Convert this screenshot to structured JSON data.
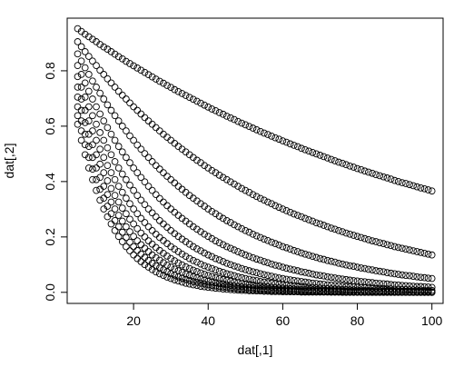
{
  "chart_data": {
    "type": "scatter",
    "title": "",
    "xlabel": "dat[,1]",
    "ylabel": "dat[,2]",
    "xlim": [
      2.2,
      103
    ],
    "ylim": [
      -0.04,
      0.99
    ],
    "xticks": [
      20,
      40,
      60,
      80,
      100
    ],
    "xtick_labels": [
      "20",
      "40",
      "60",
      "80",
      "100"
    ],
    "yticks": [
      0.0,
      0.2,
      0.4,
      0.6,
      0.8
    ],
    "ytick_labels": [
      "0.0",
      "0.2",
      "0.4",
      "0.6",
      "0.8"
    ],
    "grid": false,
    "legend": "none",
    "marker": "open-circle",
    "colors": {
      "points": "#000000",
      "axes": "#000000",
      "background": "#ffffff"
    },
    "x": [
      5,
      6,
      7,
      8,
      9,
      10,
      11,
      12,
      13,
      14,
      15,
      16,
      17,
      18,
      19,
      20,
      21,
      22,
      23,
      24,
      25,
      26,
      27,
      28,
      29,
      30,
      31,
      32,
      33,
      34,
      35,
      36,
      37,
      38,
      39,
      40,
      41,
      42,
      43,
      44,
      45,
      46,
      47,
      48,
      49,
      50,
      51,
      52,
      53,
      54,
      55,
      56,
      57,
      58,
      59,
      60,
      61,
      62,
      63,
      64,
      65,
      66,
      67,
      68,
      69,
      70,
      71,
      72,
      73,
      74,
      75,
      76,
      77,
      78,
      79,
      80,
      81,
      82,
      83,
      84,
      85,
      86,
      87,
      88,
      89,
      90,
      91,
      92,
      93,
      94,
      95,
      96,
      97,
      98,
      99,
      100
    ],
    "series": [
      {
        "values": [
          0.952,
          0.942,
          0.932,
          0.923,
          0.914,
          0.905,
          0.895,
          0.886,
          0.878,
          0.869,
          0.86,
          0.851,
          0.843,
          0.834,
          0.826,
          0.818,
          0.81,
          0.802,
          0.794,
          0.786,
          0.778,
          0.77,
          0.762,
          0.755,
          0.747,
          0.74,
          0.732,
          0.725,
          0.718,
          0.711,
          0.704,
          0.697,
          0.69,
          0.683,
          0.676,
          0.669,
          0.662,
          0.656,
          0.649,
          0.643,
          0.636,
          0.63,
          0.624,
          0.617,
          0.611,
          0.605,
          0.599,
          0.593,
          0.587,
          0.581,
          0.575,
          0.57,
          0.564,
          0.558,
          0.553,
          0.547,
          0.542,
          0.536,
          0.531,
          0.526,
          0.52,
          0.515,
          0.51,
          0.505,
          0.5,
          0.495,
          0.49,
          0.485,
          0.48,
          0.475,
          0.47,
          0.466,
          0.461,
          0.456,
          0.452,
          0.447,
          0.443,
          0.438,
          0.434,
          0.43,
          0.425,
          0.421,
          0.417,
          0.413,
          0.409,
          0.404,
          0.4,
          0.396,
          0.393,
          0.389,
          0.385,
          0.381,
          0.377,
          0.374,
          0.37,
          0.366
        ]
      },
      {
        "values": [
          0.905,
          0.887,
          0.869,
          0.852,
          0.835,
          0.819,
          0.802,
          0.787,
          0.771,
          0.756,
          0.741,
          0.726,
          0.712,
          0.698,
          0.684,
          0.67,
          0.657,
          0.644,
          0.631,
          0.619,
          0.607,
          0.595,
          0.583,
          0.571,
          0.56,
          0.549,
          0.538,
          0.527,
          0.517,
          0.507,
          0.497,
          0.487,
          0.477,
          0.468,
          0.458,
          0.449,
          0.44,
          0.432,
          0.423,
          0.415,
          0.407,
          0.399,
          0.391,
          0.383,
          0.375,
          0.368,
          0.361,
          0.353,
          0.346,
          0.339,
          0.333,
          0.326,
          0.32,
          0.313,
          0.307,
          0.301,
          0.295,
          0.289,
          0.283,
          0.278,
          0.273,
          0.267,
          0.262,
          0.257,
          0.251,
          0.247,
          0.242,
          0.237,
          0.232,
          0.228,
          0.223,
          0.219,
          0.214,
          0.21,
          0.206,
          0.202,
          0.198,
          0.194,
          0.19,
          0.186,
          0.183,
          0.179,
          0.176,
          0.172,
          0.169,
          0.165,
          0.162,
          0.159,
          0.156,
          0.153,
          0.15,
          0.147,
          0.144,
          0.141,
          0.138,
          0.135
        ]
      },
      {
        "values": [
          0.861,
          0.835,
          0.811,
          0.787,
          0.763,
          0.741,
          0.719,
          0.698,
          0.677,
          0.657,
          0.638,
          0.619,
          0.6,
          0.583,
          0.565,
          0.549,
          0.532,
          0.517,
          0.501,
          0.487,
          0.472,
          0.458,
          0.445,
          0.432,
          0.419,
          0.407,
          0.395,
          0.383,
          0.372,
          0.361,
          0.35,
          0.34,
          0.33,
          0.32,
          0.311,
          0.301,
          0.292,
          0.284,
          0.275,
          0.267,
          0.259,
          0.252,
          0.244,
          0.237,
          0.23,
          0.223,
          0.217,
          0.21,
          0.204,
          0.198,
          0.192,
          0.187,
          0.181,
          0.176,
          0.171,
          0.165,
          0.161,
          0.156,
          0.151,
          0.147,
          0.142,
          0.138,
          0.134,
          0.13,
          0.126,
          0.122,
          0.119,
          0.115,
          0.112,
          0.109,
          0.105,
          0.102,
          0.099,
          0.096,
          0.094,
          0.091,
          0.088,
          0.086,
          0.083,
          0.081,
          0.078,
          0.076,
          0.074,
          0.071,
          0.069,
          0.067,
          0.065,
          0.063,
          0.061,
          0.06,
          0.058,
          0.056,
          0.054,
          0.053,
          0.051,
          0.05
        ]
      },
      {
        "values": [
          0.819,
          0.787,
          0.756,
          0.726,
          0.698,
          0.67,
          0.644,
          0.619,
          0.595,
          0.571,
          0.549,
          0.527,
          0.507,
          0.487,
          0.468,
          0.449,
          0.432,
          0.415,
          0.399,
          0.383,
          0.368,
          0.353,
          0.339,
          0.326,
          0.313,
          0.301,
          0.289,
          0.278,
          0.267,
          0.257,
          0.247,
          0.237,
          0.228,
          0.219,
          0.21,
          0.202,
          0.194,
          0.186,
          0.179,
          0.172,
          0.165,
          0.159,
          0.153,
          0.147,
          0.141,
          0.135,
          0.13,
          0.125,
          0.12,
          0.116,
          0.111,
          0.107,
          0.102,
          0.098,
          0.095,
          0.091,
          0.087,
          0.084,
          0.081,
          0.078,
          0.074,
          0.072,
          0.069,
          0.066,
          0.063,
          0.061,
          0.059,
          0.056,
          0.054,
          0.052,
          0.05,
          0.048,
          0.046,
          0.044,
          0.042,
          0.041,
          0.039,
          0.038,
          0.036,
          0.035,
          0.033,
          0.032,
          0.031,
          0.03,
          0.028,
          0.027,
          0.026,
          0.025,
          0.024,
          0.023,
          0.022,
          0.021,
          0.021,
          0.02,
          0.019,
          0.018
        ]
      },
      {
        "values": [
          0.779,
          0.741,
          0.705,
          0.67,
          0.638,
          0.607,
          0.577,
          0.549,
          0.522,
          0.497,
          0.472,
          0.449,
          0.427,
          0.407,
          0.387,
          0.368,
          0.35,
          0.333,
          0.317,
          0.301,
          0.287,
          0.273,
          0.259,
          0.247,
          0.235,
          0.223,
          0.212,
          0.202,
          0.192,
          0.183,
          0.174,
          0.165,
          0.157,
          0.15,
          0.142,
          0.135,
          0.129,
          0.122,
          0.117,
          0.111,
          0.105,
          0.1,
          0.095,
          0.091,
          0.086,
          0.082,
          0.078,
          0.074,
          0.071,
          0.067,
          0.064,
          0.061,
          0.058,
          0.055,
          0.052,
          0.05,
          0.047,
          0.045,
          0.043,
          0.041,
          0.039,
          0.037,
          0.035,
          0.033,
          0.032,
          0.03,
          0.029,
          0.027,
          0.026,
          0.025,
          0.024,
          0.022,
          0.021,
          0.02,
          0.019,
          0.018,
          0.017,
          0.017,
          0.016,
          0.015,
          0.014,
          0.014,
          0.013,
          0.012,
          0.012,
          0.011,
          0.011,
          0.01,
          0.01,
          0.009,
          0.009,
          0.008,
          0.008,
          0.007,
          0.007,
          0.007
        ]
      },
      {
        "values": [
          0.741,
          0.698,
          0.657,
          0.619,
          0.583,
          0.549,
          0.517,
          0.487,
          0.458,
          0.432,
          0.407,
          0.383,
          0.361,
          0.34,
          0.32,
          0.301,
          0.284,
          0.267,
          0.252,
          0.237,
          0.223,
          0.21,
          0.198,
          0.187,
          0.176,
          0.165,
          0.156,
          0.147,
          0.138,
          0.13,
          0.122,
          0.115,
          0.109,
          0.102,
          0.096,
          0.091,
          0.086,
          0.081,
          0.076,
          0.072,
          0.067,
          0.064,
          0.06,
          0.056,
          0.053,
          0.05,
          0.047,
          0.044,
          0.042,
          0.039,
          0.037,
          0.035,
          0.033,
          0.031,
          0.029,
          0.027,
          0.026,
          0.024,
          0.023,
          0.022,
          0.02,
          0.019,
          0.018,
          0.017,
          0.016,
          0.015,
          0.014,
          0.013,
          0.012,
          0.012,
          0.011,
          0.01,
          0.01,
          0.009,
          0.009,
          0.008,
          0.008,
          0.007,
          0.007,
          0.006,
          0.006,
          0.006,
          0.005,
          0.005,
          0.005,
          0.004,
          0.004,
          0.004,
          0.004,
          0.003,
          0.003,
          0.003,
          0.003,
          0.003,
          0.003,
          0.002
        ]
      },
      {
        "values": [
          0.705,
          0.657,
          0.613,
          0.571,
          0.533,
          0.497,
          0.463,
          0.432,
          0.403,
          0.375,
          0.35,
          0.326,
          0.304,
          0.284,
          0.264,
          0.247,
          0.23,
          0.214,
          0.2,
          0.186,
          0.174,
          0.162,
          0.151,
          0.141,
          0.131,
          0.122,
          0.114,
          0.106,
          0.099,
          0.092,
          0.086,
          0.08,
          0.075,
          0.07,
          0.065,
          0.061,
          0.057,
          0.053,
          0.049,
          0.046,
          0.043,
          0.04,
          0.037,
          0.035,
          0.032,
          0.03,
          0.028,
          0.026,
          0.024,
          0.023,
          0.021,
          0.02,
          0.018,
          0.017,
          0.016,
          0.015,
          0.014,
          0.013,
          0.012,
          0.011,
          0.01,
          0.01,
          0.009,
          0.008,
          0.008,
          0.007,
          0.007,
          0.006,
          0.006,
          0.005,
          0.005,
          0.005,
          0.004,
          0.004,
          0.004,
          0.003,
          0.003,
          0.003,
          0.003,
          0.003,
          0.002,
          0.002,
          0.002,
          0.002,
          0.002,
          0.002,
          0.002,
          0.001,
          0.001,
          0.001,
          0.001,
          0.001,
          0.001,
          0.001,
          0.001,
          0.001
        ]
      },
      {
        "values": [
          0.67,
          0.619,
          0.571,
          0.527,
          0.487,
          0.449,
          0.415,
          0.383,
          0.353,
          0.326,
          0.301,
          0.278,
          0.257,
          0.237,
          0.219,
          0.202,
          0.186,
          0.172,
          0.159,
          0.147,
          0.135,
          0.125,
          0.116,
          0.107,
          0.098,
          0.091,
          0.084,
          0.078,
          0.072,
          0.066,
          0.061,
          0.056,
          0.052,
          0.048,
          0.044,
          0.041,
          0.038,
          0.035,
          0.032,
          0.03,
          0.027,
          0.025,
          0.023,
          0.021,
          0.02,
          0.018,
          0.017,
          0.016,
          0.014,
          0.013,
          0.012,
          0.011,
          0.01,
          0.01,
          0.009,
          0.008,
          0.008,
          0.007,
          0.006,
          0.006,
          0.005,
          0.005,
          0.005,
          0.004,
          0.004,
          0.004,
          0.003,
          0.003,
          0.003,
          0.003,
          0.002,
          0.002,
          0.002,
          0.002,
          0.002,
          0.002,
          0.001,
          0.001,
          0.001,
          0.001,
          0.001,
          0.001,
          0.001,
          0.001,
          0.001,
          0.001,
          0.001,
          0.001,
          0.001,
          0,
          0,
          0,
          0,
          0,
          0,
          0
        ]
      },
      {
        "values": [
          0.638,
          0.583,
          0.533,
          0.487,
          0.445,
          0.407,
          0.372,
          0.34,
          0.311,
          0.284,
          0.259,
          0.237,
          0.217,
          0.198,
          0.181,
          0.165,
          0.151,
          0.138,
          0.126,
          0.115,
          0.105,
          0.096,
          0.088,
          0.081,
          0.074,
          0.067,
          0.062,
          0.056,
          0.051,
          0.047,
          0.043,
          0.039,
          0.036,
          0.033,
          0.03,
          0.027,
          0.025,
          0.023,
          0.021,
          0.019,
          0.018,
          0.016,
          0.015,
          0.013,
          0.012,
          0.011,
          0.01,
          0.009,
          0.009,
          0.008,
          0.007,
          0.007,
          0.006,
          0.005,
          0.005,
          0.005,
          0.004,
          0.004,
          0.003,
          0.003,
          0.003,
          0.003,
          0.002,
          0.002,
          0.002,
          0.002,
          0.002,
          0.002,
          0.001,
          0.001,
          0.001,
          0.001,
          0.001,
          0.001,
          0.001,
          0.001,
          0.001,
          0.001,
          0.001,
          0,
          0,
          0,
          0,
          0,
          0,
          0,
          0,
          0,
          0,
          0,
          0,
          0,
          0,
          0,
          0,
          0
        ]
      },
      {
        "values": [
          0.607,
          0.549,
          0.497,
          0.449,
          0.407,
          0.368,
          0.333,
          0.301,
          0.273,
          0.247,
          0.223,
          0.202,
          0.183,
          0.165,
          0.15,
          0.135,
          0.122,
          0.111,
          0.1,
          0.091,
          0.082,
          0.074,
          0.067,
          0.061,
          0.055,
          0.05,
          0.045,
          0.041,
          0.037,
          0.033,
          0.03,
          0.027,
          0.025,
          0.022,
          0.02,
          0.018,
          0.017,
          0.015,
          0.014,
          0.012,
          0.011,
          0.01,
          0.009,
          0.008,
          0.007,
          0.007,
          0.006,
          0.006,
          0.005,
          0.005,
          0.004,
          0.004,
          0.003,
          0.003,
          0.003,
          0.002,
          0.002,
          0.002,
          0.002,
          0.002,
          0.001,
          0.001,
          0.001,
          0.001,
          0.001,
          0.001,
          0.001,
          0.001,
          0.001,
          0.001,
          0.001,
          0,
          0,
          0,
          0,
          0,
          0,
          0,
          0,
          0,
          0,
          0,
          0,
          0,
          0,
          0,
          0,
          0,
          0,
          0,
          0,
          0,
          0,
          0,
          0,
          0
        ]
      }
    ]
  }
}
